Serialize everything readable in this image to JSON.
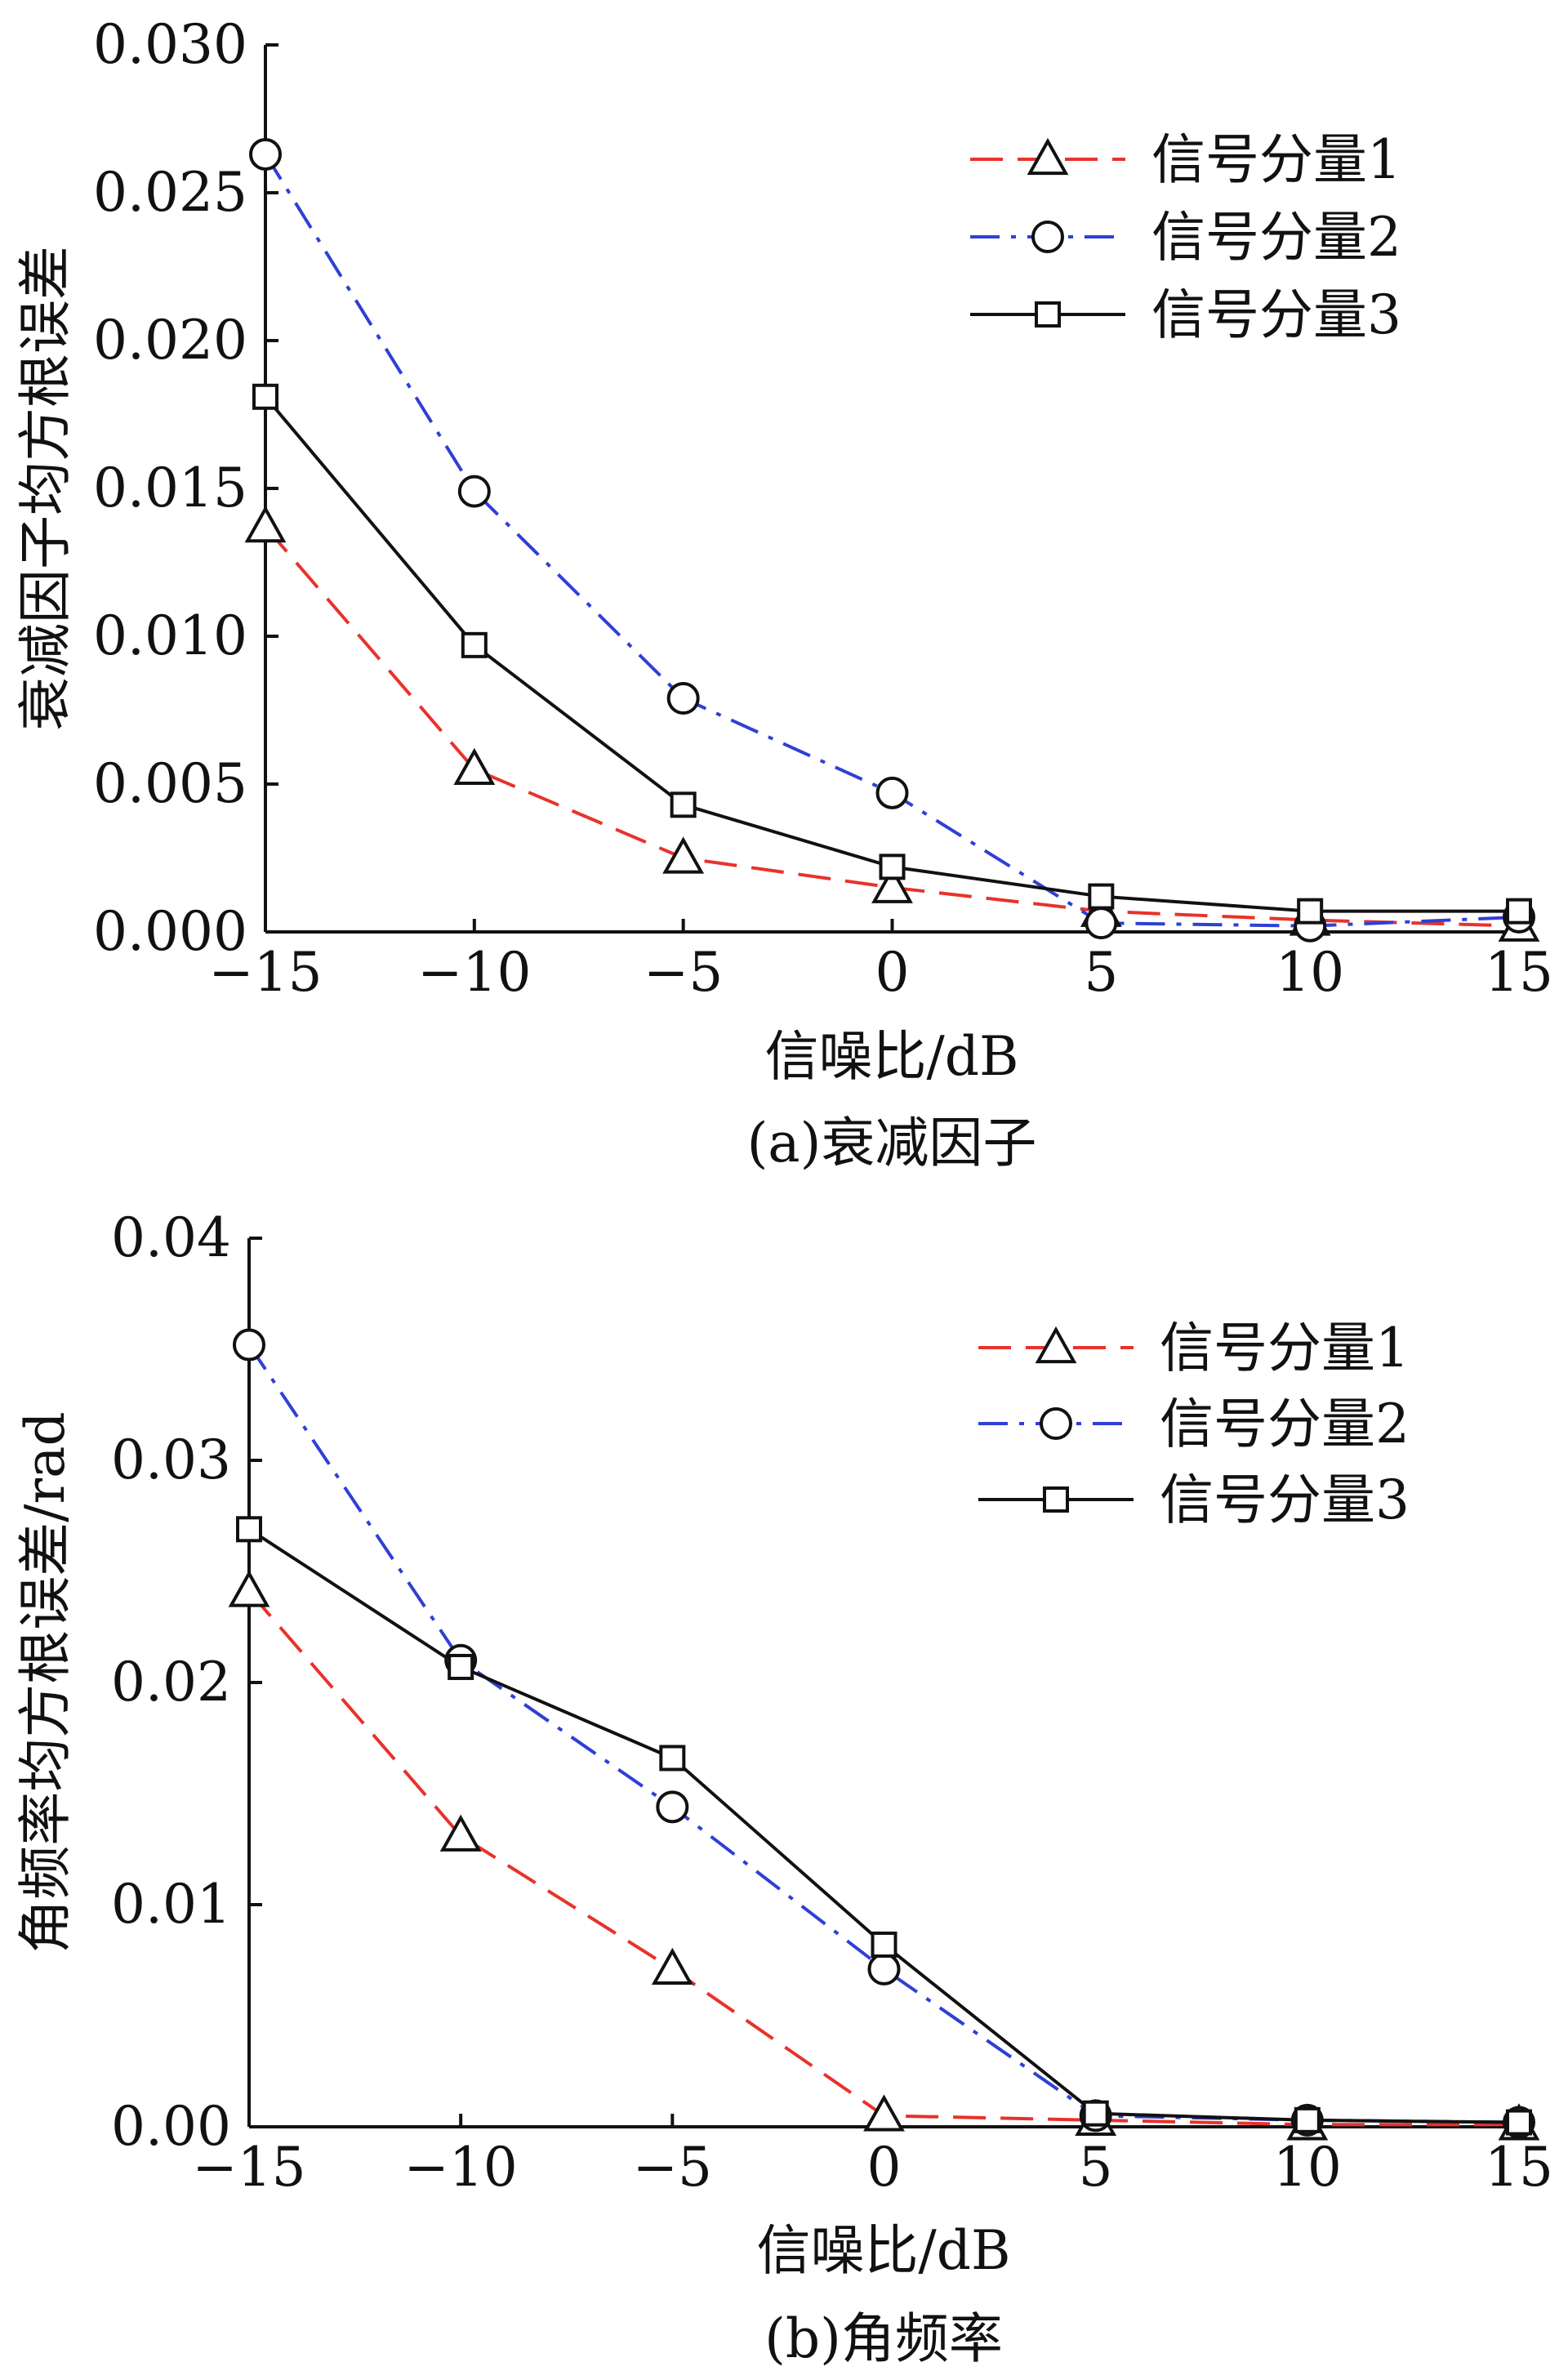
{
  "chart_data": [
    {
      "type": "line",
      "caption": "(a)衰减因子",
      "xlabel": "信噪比/dB",
      "ylabel": "衰减因子均方根误差",
      "x": [
        -15,
        -10,
        -5,
        0,
        5,
        10,
        15
      ],
      "xticks": [
        "−15",
        "−10",
        "−5",
        "0",
        "5",
        "10",
        "15"
      ],
      "yticks": [
        "0.000",
        "0.005",
        "0.010",
        "0.015",
        "0.020",
        "0.025",
        "0.030"
      ],
      "xlim": [
        -15,
        15
      ],
      "ylim": [
        0,
        0.03
      ],
      "legend_position": "top-right",
      "series": [
        {
          "name": "信号分量1",
          "marker": "triangle",
          "color": "#e8322b",
          "dash": "dashed",
          "values": [
            0.0137,
            0.0055,
            0.0025,
            0.0015,
            0.0007,
            0.0004,
            0.0002
          ]
        },
        {
          "name": "信号分量2",
          "marker": "circle",
          "color": "#2f3fd6",
          "dash": "dashdot",
          "values": [
            0.0263,
            0.0149,
            0.0079,
            0.0047,
            0.0003,
            0.0002,
            0.0005
          ]
        },
        {
          "name": "信号分量3",
          "marker": "square",
          "color": "#111111",
          "dash": "solid",
          "values": [
            0.0181,
            0.0097,
            0.0043,
            0.0022,
            0.0012,
            0.0007,
            0.0007
          ]
        }
      ]
    },
    {
      "type": "line",
      "caption": "(b)角频率",
      "xlabel": "信噪比/dB",
      "ylabel": "角频率均方根误差/rad",
      "x": [
        -15,
        -10,
        -5,
        0,
        5,
        10,
        15
      ],
      "xticks": [
        "−15",
        "−10",
        "−5",
        "0",
        "5",
        "10",
        "15"
      ],
      "yticks": [
        "0.00",
        "0.01",
        "0.02",
        "0.03",
        "0.04"
      ],
      "xlim": [
        -15,
        15
      ],
      "ylim": [
        0,
        0.04
      ],
      "legend_position": "top-right",
      "series": [
        {
          "name": "信号分量1",
          "marker": "triangle",
          "color": "#e8322b",
          "dash": "dashed",
          "values": [
            0.0241,
            0.0131,
            0.0071,
            0.0005,
            0.0003,
            0.0001,
            0.0001
          ]
        },
        {
          "name": "信号分量2",
          "marker": "circle",
          "color": "#2f3fd6",
          "dash": "dashdot",
          "values": [
            0.0352,
            0.021,
            0.0144,
            0.0071,
            0.0005,
            0.0003,
            0.0002
          ]
        },
        {
          "name": "信号分量3",
          "marker": "square",
          "color": "#111111",
          "dash": "solid",
          "values": [
            0.0269,
            0.0207,
            0.0166,
            0.0082,
            0.0006,
            0.0003,
            0.0002
          ]
        }
      ]
    }
  ]
}
